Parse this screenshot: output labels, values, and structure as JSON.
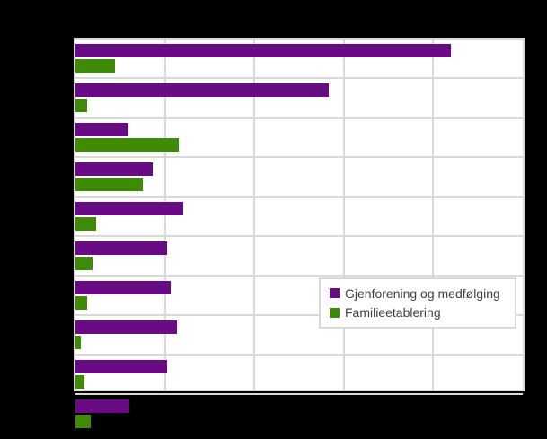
{
  "page": {
    "background_color": "#000000",
    "plot_background_color": "#ffffff",
    "gridline_color": "#d9d9d9"
  },
  "chart_data": {
    "type": "bar",
    "orientation": "horizontal",
    "title": "",
    "categories": [
      "",
      "",
      "",
      "",
      "",
      "",
      "",
      "",
      "",
      ""
    ],
    "categories_visible": false,
    "axis_tick_labels_visible": false,
    "xlabel": "",
    "ylabel": "",
    "xlim": [
      0,
      5
    ],
    "gridline_interval": 1,
    "grid": "on",
    "legend_position": "middle-right-overlay",
    "series": [
      {
        "name": "Gjenforening og medfølging",
        "color": "#6a0b86",
        "values": [
          4.2,
          2.83,
          0.59,
          0.86,
          1.2,
          1.02,
          1.06,
          1.13,
          1.02,
          0.6
        ]
      },
      {
        "name": "Familieetablering",
        "color": "#3f8a06",
        "values": [
          0.44,
          0.13,
          1.15,
          0.75,
          0.23,
          0.19,
          0.13,
          0.06,
          0.1,
          0.17
        ]
      }
    ]
  },
  "legend": {
    "items": [
      {
        "label": "Gjenforening og medfølging",
        "color": "#6a0b86"
      },
      {
        "label": "Familieetablering",
        "color": "#3f8a06"
      }
    ]
  }
}
